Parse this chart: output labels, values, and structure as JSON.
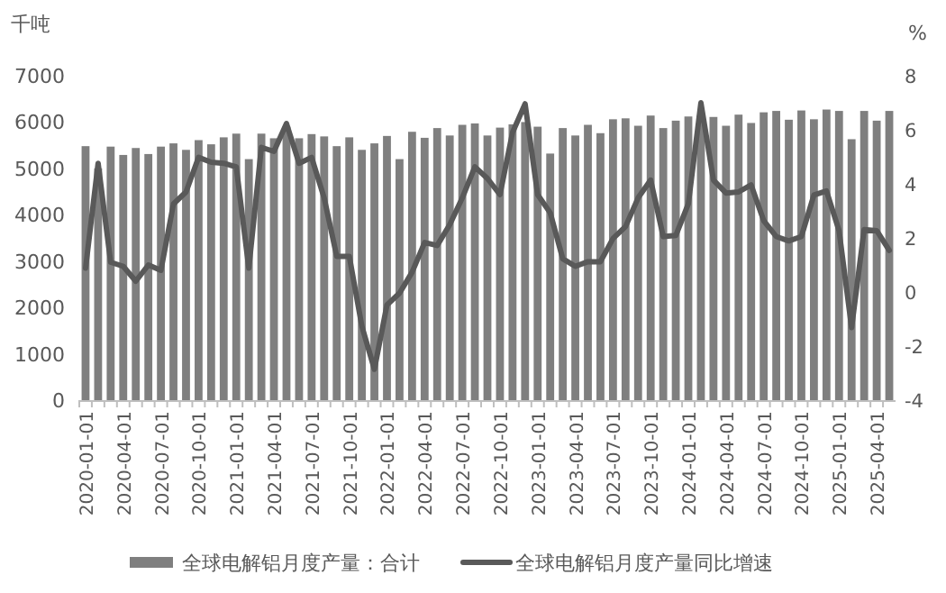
{
  "chart_data": {
    "type": "bar",
    "ylabel": "千吨",
    "y2label": "%",
    "categories": [
      "2020-01-01",
      null,
      null,
      "2020-04-01",
      null,
      null,
      "2020-07-01",
      null,
      null,
      "2020-10-01",
      null,
      null,
      "2021-01-01",
      null,
      null,
      "2021-04-01",
      null,
      null,
      "2021-07-01",
      null,
      null,
      "2021-10-01",
      null,
      null,
      "2022-01-01",
      null,
      null,
      "2022-04-01",
      null,
      null,
      "2022-07-01",
      null,
      null,
      "2022-10-01",
      null,
      null,
      "2023-01-01",
      null,
      null,
      "2023-04-01",
      null,
      null,
      "2023-07-01",
      null,
      null,
      "2023-10-01",
      null,
      null,
      "2024-01-01",
      null,
      null,
      "2024-04-01",
      null,
      null,
      "2024-07-01",
      null,
      null,
      "2024-10-01",
      null,
      null,
      "2025-01-01",
      null,
      null,
      "2025-04-01",
      null
    ],
    "series": [
      {
        "name": "全球电解铝月度产量：合计",
        "color": "#7f7f7f",
        "values": [
          5480,
          5000,
          5470,
          5290,
          5440,
          5310,
          5470,
          5540,
          5400,
          5610,
          5520,
          5670,
          5750,
          5200,
          5750,
          5650,
          5900,
          5650,
          5740,
          5690,
          5480,
          5670,
          5400,
          5540,
          5700,
          5200,
          5790,
          5660,
          5870,
          5710,
          5940,
          5970,
          5710,
          5880,
          5950,
          6000,
          5900,
          5320,
          5870,
          5710,
          5940,
          5760,
          6060,
          6080,
          5920,
          6140,
          5870,
          6030,
          6120,
          6150,
          6110,
          5920,
          6160,
          5980,
          6210,
          6240,
          6050,
          6250,
          6060,
          6270,
          6240,
          5630,
          6240,
          6030,
          6240
        ]
      },
      {
        "name": "全球电解铝月度产量同比增速",
        "type": "line",
        "axis": "y2",
        "color": "#595959",
        "values": [
          0.88,
          4.76,
          1.1,
          0.95,
          0.4,
          1.0,
          0.8,
          3.26,
          3.7,
          4.98,
          4.8,
          4.76,
          4.63,
          0.88,
          5.35,
          5.2,
          6.23,
          4.76,
          4.98,
          3.48,
          1.32,
          1.32,
          -1.26,
          -2.86,
          -0.48,
          -0.04,
          0.73,
          1.83,
          1.72,
          2.49,
          3.48,
          4.63,
          4.2,
          3.6,
          5.9,
          6.96,
          3.6,
          2.93,
          1.23,
          0.95,
          1.12,
          1.12,
          1.98,
          2.42,
          3.48,
          4.14,
          2.05,
          2.09,
          3.26,
          7.0,
          4.14,
          3.66,
          3.7,
          3.96,
          2.64,
          2.05,
          1.89,
          2.05,
          3.59,
          3.74,
          2.27,
          -1.32,
          2.31,
          2.27,
          1.54
        ]
      }
    ],
    "ylim": [
      0,
      7000
    ],
    "yticks": [
      0,
      1000,
      2000,
      3000,
      4000,
      5000,
      6000,
      7000
    ],
    "y2lim": [
      -4,
      8
    ],
    "y2ticks": [
      -4,
      -2,
      0,
      2,
      4,
      6,
      8
    ],
    "legend": "bottom",
    "grid": false
  }
}
